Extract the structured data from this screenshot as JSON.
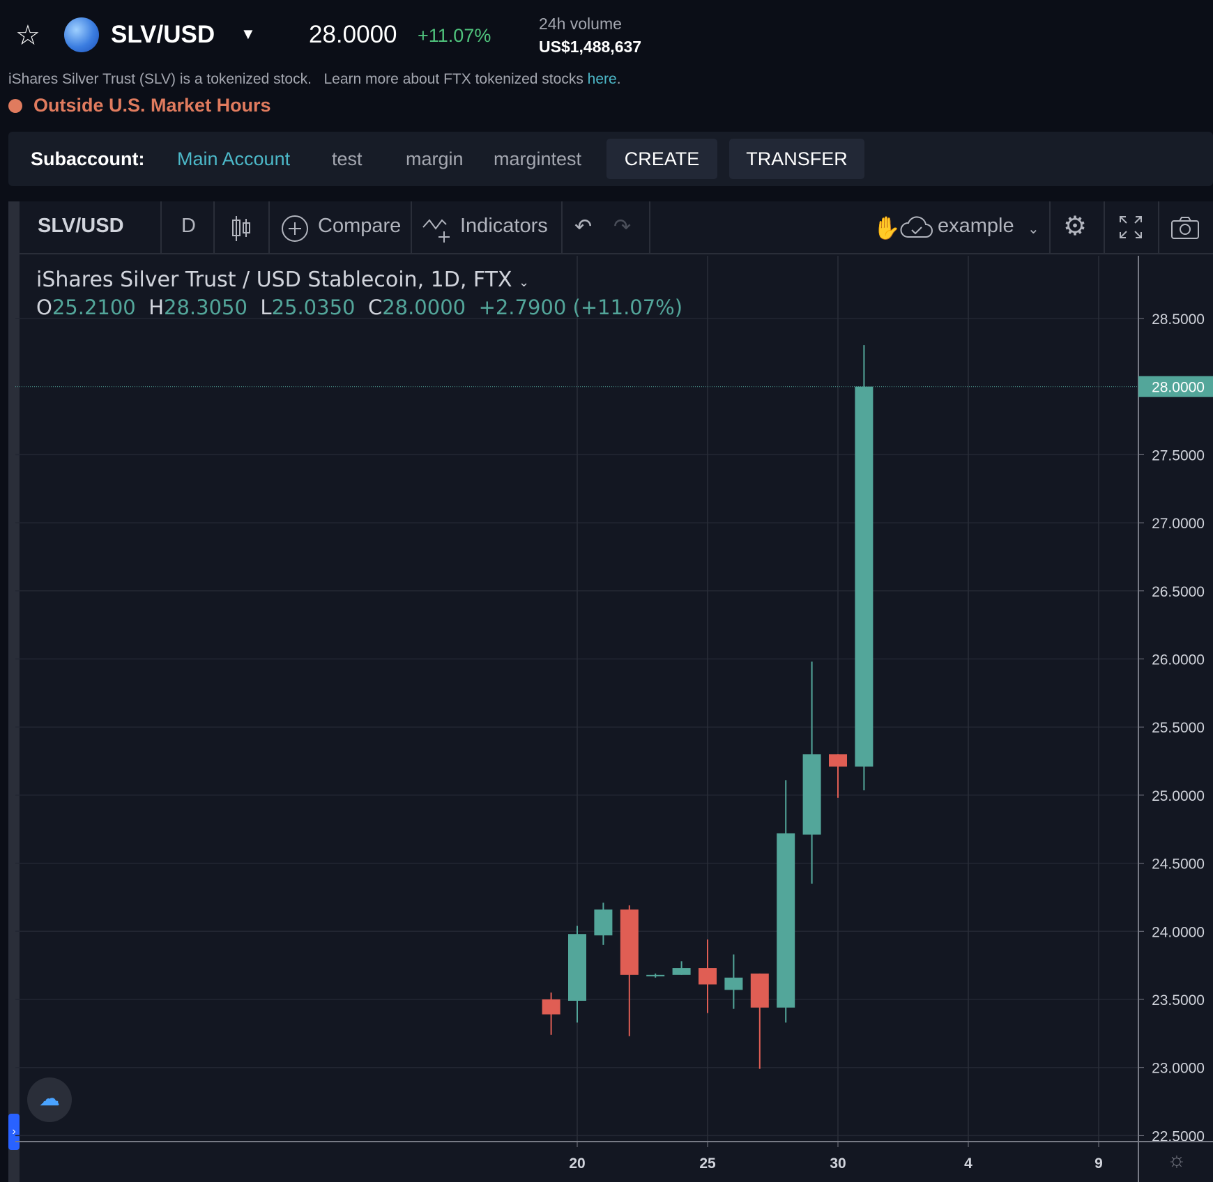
{
  "header": {
    "symbol": "SLV/USD",
    "price": "28.0000",
    "change": "+11.07%",
    "volume_label": "24h volume",
    "volume_value": "US$1,488,637",
    "description": "iShares Silver Trust (SLV) is a tokenized stock.",
    "learn_more": "Learn more about FTX tokenized stocks ",
    "learn_link": "here",
    "learn_end": ".",
    "market_status": "Outside U.S. Market Hours"
  },
  "subaccount": {
    "label": "Subaccount:",
    "items": [
      "Main Account",
      "test",
      "margin",
      "margintest"
    ],
    "create": "CREATE",
    "transfer": "TRANSFER"
  },
  "toolbar": {
    "symbol": "SLV/USD",
    "interval": "D",
    "compare": "Compare",
    "indicators": "Indicators",
    "layout": "example"
  },
  "legend": {
    "title": "iShares Silver Trust / USD Stablecoin, 1D, FTX",
    "o_label": "O",
    "o": "25.2100",
    "h_label": "H",
    "h": "28.3050",
    "l_label": "L",
    "l": "25.0350",
    "c_label": "C",
    "c": "28.0000",
    "change": "+2.7900 (+11.07%)"
  },
  "colors": {
    "up": "#53a69a",
    "down": "#e05e54",
    "accent": "#4cb8c8",
    "warning": "#e07b5e"
  },
  "chart_data": {
    "type": "candlestick",
    "current_price": "28.0000",
    "y_ticks": [
      "28.5000",
      "27.5000",
      "27.0000",
      "26.5000",
      "26.0000",
      "25.5000",
      "25.0000",
      "24.5000",
      "24.0000",
      "23.5000",
      "23.0000",
      "22.5000"
    ],
    "y_tick_values": [
      28.5,
      27.5,
      27.0,
      26.5,
      26.0,
      25.5,
      25.0,
      24.5,
      24.0,
      23.5,
      23.0,
      22.5
    ],
    "ylim": [
      22.5,
      28.5
    ],
    "x_ticks": [
      "20",
      "25",
      "30",
      "4",
      "9"
    ],
    "x_tick_days": [
      20,
      25,
      30,
      35,
      40
    ],
    "candles": [
      {
        "day": 19,
        "o": 23.5,
        "h": 23.55,
        "l": 23.24,
        "c": 23.39
      },
      {
        "day": 20,
        "o": 23.49,
        "h": 24.04,
        "l": 23.33,
        "c": 23.98
      },
      {
        "day": 21,
        "o": 23.97,
        "h": 24.21,
        "l": 23.9,
        "c": 24.16
      },
      {
        "day": 22,
        "o": 24.16,
        "h": 24.19,
        "l": 23.23,
        "c": 23.68
      },
      {
        "day": 23,
        "o": 23.67,
        "h": 23.69,
        "l": 23.66,
        "c": 23.68
      },
      {
        "day": 24,
        "o": 23.68,
        "h": 23.78,
        "l": 23.68,
        "c": 23.73
      },
      {
        "day": 25,
        "o": 23.73,
        "h": 23.94,
        "l": 23.4,
        "c": 23.61
      },
      {
        "day": 26,
        "o": 23.57,
        "h": 23.83,
        "l": 23.43,
        "c": 23.66
      },
      {
        "day": 27,
        "o": 23.69,
        "h": 23.69,
        "l": 22.99,
        "c": 23.44
      },
      {
        "day": 28,
        "o": 23.44,
        "h": 25.11,
        "l": 23.33,
        "c": 24.72
      },
      {
        "day": 29,
        "o": 24.71,
        "h": 25.98,
        "l": 24.35,
        "c": 25.3
      },
      {
        "day": 30,
        "o": 25.3,
        "h": 25.3,
        "l": 24.98,
        "c": 25.21
      },
      {
        "day": 31,
        "o": 25.21,
        "h": 28.305,
        "l": 25.035,
        "c": 28.0
      }
    ]
  }
}
